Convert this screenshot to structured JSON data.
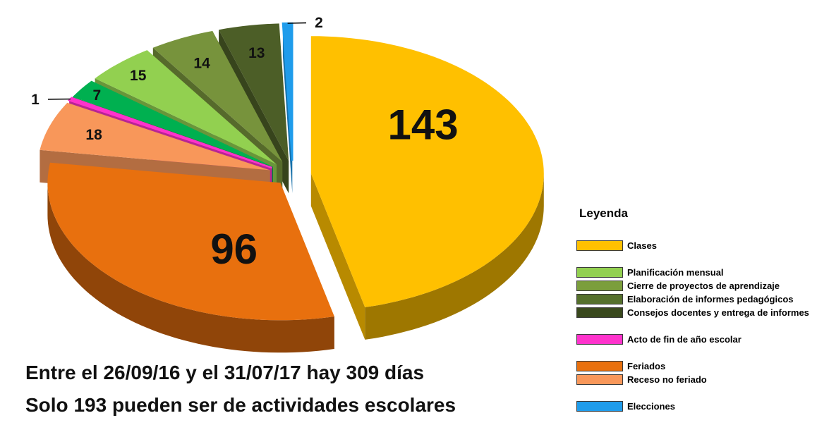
{
  "captions": {
    "line1": "Entre el 26/09/16 y el 31/07/17 hay 309 días",
    "line2": "Solo 193 pueden ser de actividades escolares"
  },
  "legend": {
    "title": "Leyenda",
    "groups": [
      [
        {
          "label": "Clases",
          "color": "#FFC000"
        }
      ],
      [
        {
          "label": "Planificación mensual",
          "color": "#92D050"
        },
        {
          "label": "Cierre de proyectos de aprendizaje",
          "color": "#7B9E3C"
        },
        {
          "label": "Elaboración de informes pedagógicos",
          "color": "#55702C"
        },
        {
          "label": "Consejos docentes y entrega de informes",
          "color": "#39481D"
        }
      ],
      [
        {
          "label": "Acto de fin de año escolar",
          "color": "#FF33CC"
        }
      ],
      [
        {
          "label": "Feriados",
          "color": "#E8700E"
        },
        {
          "label": "Receso no feriado",
          "color": "#F8975A"
        }
      ],
      [
        {
          "label": "Elecciones",
          "color": "#1F9CEB"
        }
      ]
    ]
  },
  "chart_data": {
    "type": "pie",
    "style": "3d-exploded",
    "total": 309,
    "slices": [
      {
        "label": "Clases",
        "value": 143,
        "color": "#FFC000"
      },
      {
        "label": "Feriados",
        "value": 96,
        "color": "#E8700E"
      },
      {
        "label": "Receso no feriado",
        "value": 18,
        "color": "#F8975A"
      },
      {
        "label": "Acto de fin de año escolar",
        "value": 1,
        "color": "#FF33CC"
      },
      {
        "label": "Planificación mensual",
        "value": 7,
        "color": "#00B050"
      },
      {
        "label": "Cierre de proyectos de aprendizaje",
        "value": 15,
        "color": "#92D050"
      },
      {
        "label": "Elaboración de informes pedagógicos",
        "value": 14,
        "color": "#77933C"
      },
      {
        "label": "Consejos docentes y entrega de informes",
        "value": 13,
        "color": "#4C5E27"
      },
      {
        "label": "Elecciones",
        "value": 2,
        "color": "#1F9CEB"
      }
    ],
    "annotations": {
      "values_shown_on_slices": true,
      "legend_position": "right"
    }
  }
}
